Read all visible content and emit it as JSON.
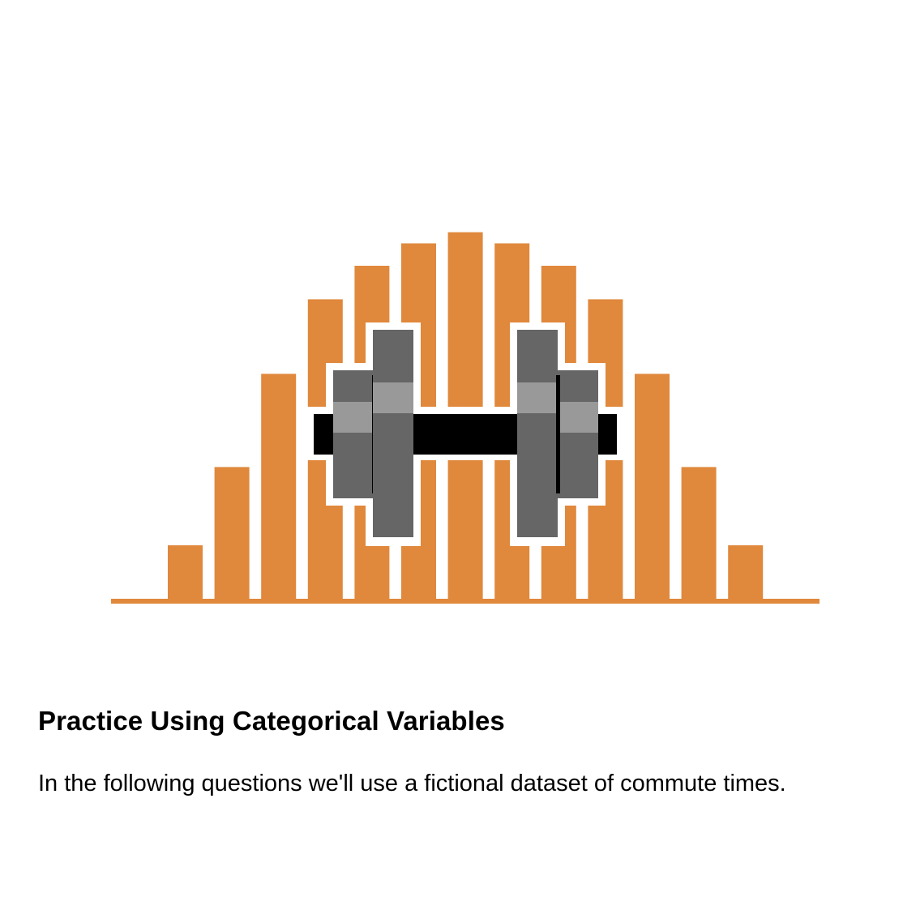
{
  "card": {
    "title": "Practice Using Categorical Variables",
    "description": "In the following questions we'll use a fictional dataset of commute times."
  },
  "illustration": {
    "name": "histogram-with-dumbbell",
    "bar_color": "#e0883c",
    "baseline_color": "#e0883c",
    "dumbbell_bar_color": "#000000",
    "plate_color": "#666666",
    "plate_highlight_color": "#999999",
    "outline_color": "#ffffff",
    "bar_relative_heights": [
      0.15,
      0.36,
      0.61,
      0.81,
      0.9,
      0.96,
      0.99,
      0.96,
      0.9,
      0.81,
      0.61,
      0.36,
      0.15
    ]
  }
}
